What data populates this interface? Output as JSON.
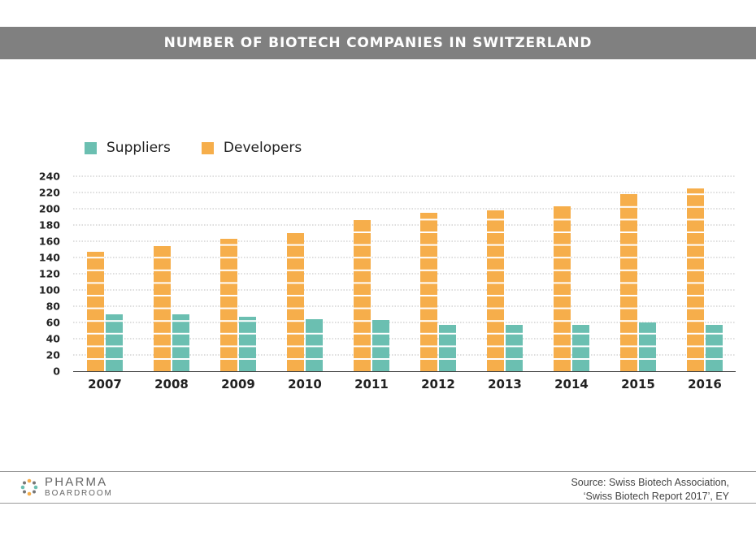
{
  "header": {
    "title": "NUMBER OF BIOTECH COMPANIES IN SWITZERLAND"
  },
  "legend": [
    {
      "label": "Suppliers",
      "color": "#6bbfb1"
    },
    {
      "label": "Developers",
      "color": "#f6ae4b"
    }
  ],
  "chart_data": {
    "type": "bar",
    "title": "NUMBER OF BIOTECH COMPANIES IN SWITZERLAND",
    "xlabel": "",
    "ylabel": "",
    "categories": [
      "2007",
      "2008",
      "2009",
      "2010",
      "2011",
      "2012",
      "2013",
      "2014",
      "2015",
      "2016"
    ],
    "series": [
      {
        "name": "Developers",
        "color": "#f6ae4b",
        "values": [
          147,
          154,
          163,
          170,
          186,
          195,
          198,
          203,
          218,
          225
        ]
      },
      {
        "name": "Suppliers",
        "color": "#6bbfb1",
        "values": [
          70,
          70,
          67,
          64,
          63,
          57,
          57,
          57,
          60,
          57
        ]
      }
    ],
    "ylim": [
      0,
      240
    ],
    "yticks": [
      0,
      20,
      40,
      60,
      80,
      100,
      120,
      140,
      160,
      180,
      200,
      220,
      240
    ],
    "grid": true,
    "legend_position": "top-left"
  },
  "footer": {
    "logo_line1": "PHARMA",
    "logo_line2": "BOARDROOM",
    "source_line1": "Source:  Swiss Biotech Association,",
    "source_line2": "‘Swiss Biotech Report 2017’, EY"
  }
}
